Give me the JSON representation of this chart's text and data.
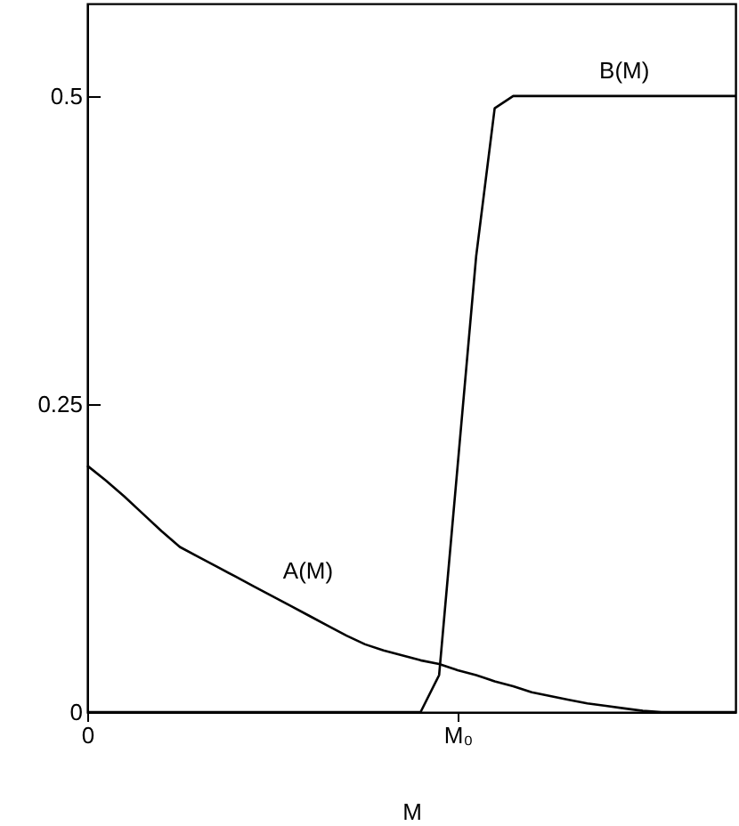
{
  "chart_data": {
    "type": "line",
    "xlabel": "M",
    "categories": [
      "0",
      null,
      null,
      null,
      null,
      null,
      null,
      null,
      null,
      null,
      null,
      null,
      null,
      null,
      null,
      null,
      null,
      null,
      null,
      null,
      "M₀",
      null,
      null,
      null,
      null,
      null,
      null,
      null,
      null,
      null,
      null,
      null,
      null,
      null,
      null,
      null
    ],
    "series": [
      {
        "name": "A(M)",
        "color": "#000000",
        "values": [
          0.2,
          0.188,
          0.175,
          0.161,
          0.147,
          0.134,
          0.126,
          0.118,
          0.11,
          0.102,
          0.094,
          0.086,
          0.078,
          0.07,
          0.062,
          0.055,
          0.05,
          0.046,
          0.042,
          0.039,
          0.034,
          0.03,
          0.025,
          0.021,
          0.016,
          0.013,
          0.01,
          0.007,
          0.005,
          0.003,
          0.001,
          0,
          0,
          0,
          0,
          0
        ]
      },
      {
        "name": "B(M)",
        "color": "#000000",
        "values": [
          0,
          0,
          0,
          0,
          0,
          0,
          0,
          0,
          0,
          0,
          0,
          0,
          0,
          0,
          0,
          0,
          0,
          0,
          0,
          0.03,
          0.2,
          0.37,
          0.49,
          0.5,
          0.5,
          0.5,
          0.5,
          0.5,
          0.5,
          0.5,
          0.5,
          0.5,
          0.5,
          0.5,
          0.5,
          0.5
        ]
      }
    ],
    "ylim": [
      0,
      0.575
    ],
    "yticks": [
      0,
      0.25,
      0.5
    ],
    "grid": false,
    "marker": "none",
    "line_style": "solid"
  }
}
